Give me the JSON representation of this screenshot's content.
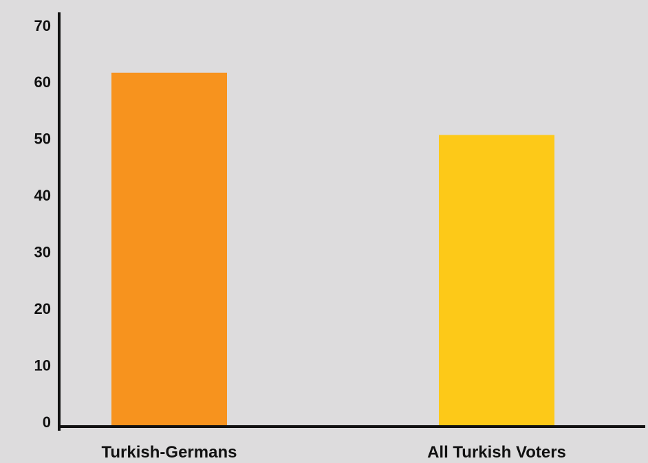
{
  "chart_data": {
    "type": "bar",
    "categories": [
      "Turkish-Germans",
      "All Turkish Voters"
    ],
    "values": [
      62.5,
      51.5
    ],
    "colors": [
      "#f7931e",
      "#fdc918"
    ],
    "ylim": [
      0,
      70
    ],
    "yticks": [
      0,
      10,
      20,
      30,
      40,
      50,
      60,
      70
    ],
    "grid": false,
    "background": "#dddcdd",
    "axis_color": "#111111"
  }
}
